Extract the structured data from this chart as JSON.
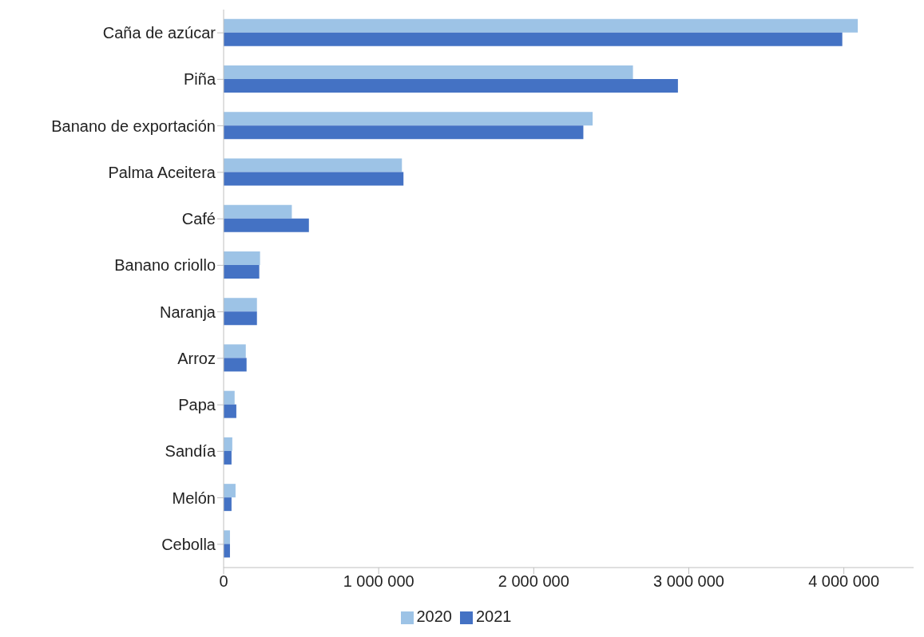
{
  "chart_data": {
    "type": "bar",
    "orientation": "horizontal",
    "categories": [
      "Caña de azúcar",
      "Piña",
      "Banano de exportación",
      "Palma Aceitera",
      "Café",
      "Banano criollo",
      "Naranja",
      "Arroz",
      "Papa",
      "Sandía",
      "Melón",
      "Cebolla"
    ],
    "series": [
      {
        "name": "2020",
        "color": "#9dc3e6",
        "values": [
          4090000,
          2640000,
          2380000,
          1150000,
          440000,
          235000,
          215000,
          143000,
          71000,
          56000,
          77000,
          41000
        ]
      },
      {
        "name": "2021",
        "color": "#4472c4",
        "values": [
          3990000,
          2930000,
          2320000,
          1160000,
          550000,
          230000,
          215000,
          148000,
          82000,
          51000,
          51000,
          41000
        ]
      }
    ],
    "xlim": [
      0,
      4450000
    ],
    "xticks": [
      0,
      {
        "value": 1000000,
        "label": "1 000 000"
      },
      {
        "value": 2000000,
        "label": "2 000 000"
      },
      {
        "value": 3000000,
        "label": "3 000 000"
      },
      {
        "value": 4000000,
        "label": "4 000 000"
      }
    ],
    "grid": false,
    "legend": "bottom"
  }
}
